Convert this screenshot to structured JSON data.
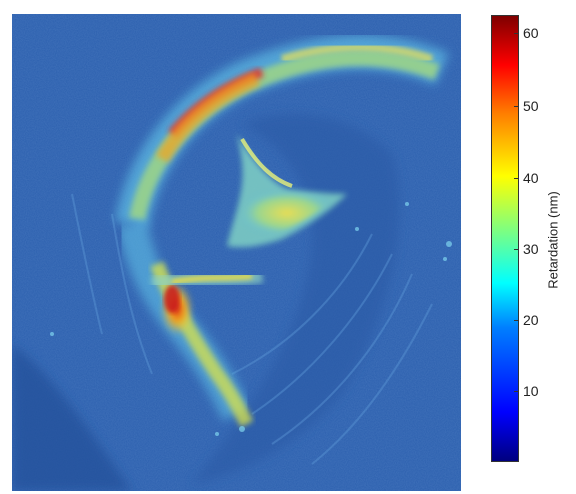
{
  "colorbar": {
    "label": "Retardation (nm)",
    "ticks": [
      "10",
      "20",
      "30",
      "40",
      "50",
      "60"
    ],
    "min": 0,
    "max": 63,
    "colormap": "jet",
    "colors": {
      "low": "#1f3c88",
      "mid": "#2fd0c8",
      "high": "#9e1a12"
    }
  },
  "image": {
    "description_colors": {
      "background": "#2a5fae",
      "fiber_light": "#5fc0e6",
      "fiber_hot": "#d8262c"
    }
  }
}
